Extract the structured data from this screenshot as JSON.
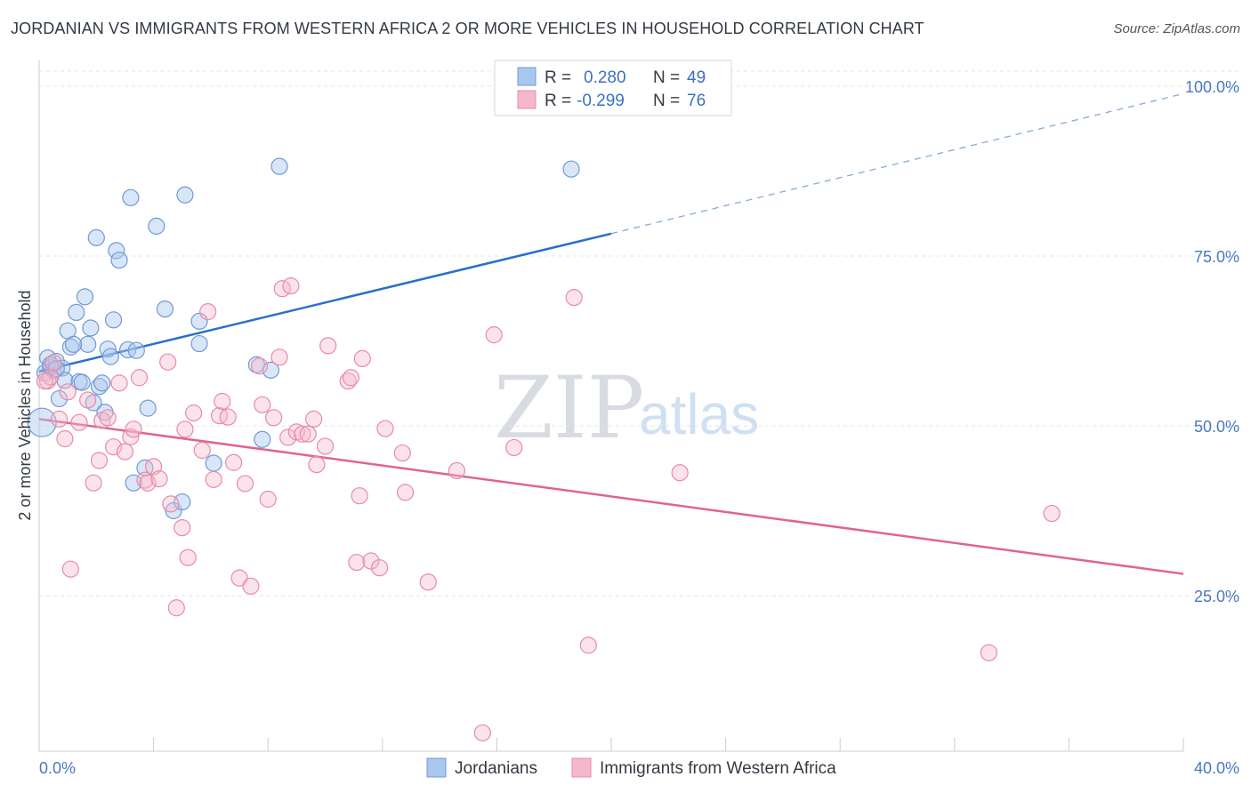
{
  "title": "JORDANIAN VS IMMIGRANTS FROM WESTERN AFRICA 2 OR MORE VEHICLES IN HOUSEHOLD CORRELATION CHART",
  "source": "Source: ZipAtlas.com",
  "watermark": {
    "zip": "ZIP",
    "atlas": "atlas"
  },
  "legend_box": {
    "rows": [
      {
        "r_label": "R =",
        "r_value": "0.280",
        "n_label": "N =",
        "n_value": "49"
      },
      {
        "r_label": "R =",
        "r_value": "-0.299",
        "n_label": "N =",
        "n_value": "76"
      }
    ]
  },
  "bottom_legend": [
    "Jordanians",
    "Immigrants from Western Africa"
  ],
  "colors": {
    "blue": "#2a6fcb",
    "blue_fill": "#aac8ee",
    "pink": "#e0648f",
    "pink_fill": "#f5b8ca",
    "tick_text": "#4a78c2"
  },
  "chart_data": {
    "type": "scatter",
    "title": "JORDANIAN VS IMMIGRANTS FROM WESTERN AFRICA 2 OR MORE VEHICLES IN HOUSEHOLD CORRELATION CHART",
    "xlabel": "",
    "ylabel": "2 or more Vehicles in Household",
    "xlim": [
      0,
      40
    ],
    "ylim": [
      0,
      100
    ],
    "x_tick_labels": [
      "0.0%",
      "40.0%"
    ],
    "y_tick_labels": [
      "100.0%",
      "75.0%",
      "50.0%",
      "25.0%"
    ],
    "y_tick_values": [
      100,
      75,
      50,
      25
    ],
    "grid": true,
    "series": [
      {
        "name": "Jordanians",
        "points": [
          [
            0.1,
            50.5
          ],
          [
            0.2,
            57.8
          ],
          [
            0.3,
            60
          ],
          [
            0.4,
            58.6
          ],
          [
            0.6,
            59.5
          ],
          [
            0.5,
            58.2
          ],
          [
            0.8,
            58.5
          ],
          [
            0.9,
            56.7
          ],
          [
            0.7,
            54
          ],
          [
            1.0,
            64
          ],
          [
            1.1,
            61.6
          ],
          [
            1.3,
            66.7
          ],
          [
            1.4,
            56.5
          ],
          [
            1.5,
            56.4
          ],
          [
            1.6,
            69
          ],
          [
            1.7,
            62
          ],
          [
            1.8,
            64.4
          ],
          [
            1.9,
            53.4
          ],
          [
            2.0,
            77.7
          ],
          [
            2.1,
            55.8
          ],
          [
            2.2,
            56.3
          ],
          [
            2.3,
            52
          ],
          [
            2.4,
            61.3
          ],
          [
            2.5,
            60.2
          ],
          [
            2.6,
            65.6
          ],
          [
            2.7,
            75.8
          ],
          [
            2.8,
            74.4
          ],
          [
            3.2,
            83.6
          ],
          [
            3.1,
            61.2
          ],
          [
            3.4,
            61.1
          ],
          [
            3.3,
            41.6
          ],
          [
            3.8,
            52.6
          ],
          [
            3.7,
            43.8
          ],
          [
            4.1,
            79.4
          ],
          [
            4.4,
            67.2
          ],
          [
            4.7,
            37.5
          ],
          [
            5.0,
            38.8
          ],
          [
            5.1,
            84
          ],
          [
            5.6,
            65.4
          ],
          [
            5.6,
            62.1
          ],
          [
            6.1,
            44.5
          ],
          [
            7.6,
            59
          ],
          [
            7.8,
            48
          ],
          [
            8.1,
            58.2
          ],
          [
            8.4,
            88.2
          ],
          [
            18.6,
            87.8
          ],
          [
            0.4,
            59
          ],
          [
            0.6,
            58.4
          ],
          [
            1.2,
            62
          ]
        ]
      },
      {
        "name": "Immigrants from Western Africa",
        "points": [
          [
            0.3,
            56.6
          ],
          [
            0.4,
            57.2
          ],
          [
            0.5,
            59.3
          ],
          [
            0.7,
            51
          ],
          [
            0.9,
            48.1
          ],
          [
            1.0,
            55
          ],
          [
            1.1,
            28.9
          ],
          [
            1.4,
            50.5
          ],
          [
            1.7,
            53.8
          ],
          [
            1.9,
            41.6
          ],
          [
            2.1,
            44.9
          ],
          [
            2.2,
            50.8
          ],
          [
            2.4,
            51.2
          ],
          [
            2.6,
            46.9
          ],
          [
            2.8,
            56.3
          ],
          [
            3.0,
            46.2
          ],
          [
            3.2,
            48.4
          ],
          [
            3.3,
            49.5
          ],
          [
            3.5,
            57.1
          ],
          [
            3.7,
            42
          ],
          [
            3.8,
            41.6
          ],
          [
            4.0,
            44
          ],
          [
            4.2,
            42.2
          ],
          [
            4.5,
            59.4
          ],
          [
            4.6,
            38.5
          ],
          [
            4.8,
            23.2
          ],
          [
            5.0,
            35
          ],
          [
            5.2,
            30.6
          ],
          [
            5.1,
            49.5
          ],
          [
            5.4,
            51.9
          ],
          [
            5.7,
            46.4
          ],
          [
            5.9,
            66.8
          ],
          [
            6.1,
            42.1
          ],
          [
            6.3,
            51.5
          ],
          [
            6.4,
            53.6
          ],
          [
            6.6,
            51.3
          ],
          [
            6.8,
            44.6
          ],
          [
            7.0,
            27.6
          ],
          [
            7.2,
            41.5
          ],
          [
            7.4,
            26.4
          ],
          [
            7.7,
            58.8
          ],
          [
            7.8,
            53.1
          ],
          [
            8.0,
            39.2
          ],
          [
            8.2,
            51.2
          ],
          [
            8.4,
            60.1
          ],
          [
            8.5,
            70.2
          ],
          [
            8.7,
            48.3
          ],
          [
            8.8,
            70.6
          ],
          [
            9.0,
            49.1
          ],
          [
            9.2,
            48.8
          ],
          [
            9.4,
            48.8
          ],
          [
            9.6,
            51
          ],
          [
            9.7,
            44.3
          ],
          [
            10.0,
            47
          ],
          [
            10.1,
            61.8
          ],
          [
            10.8,
            56.6
          ],
          [
            10.9,
            57.1
          ],
          [
            11.1,
            29.9
          ],
          [
            11.2,
            39.7
          ],
          [
            11.3,
            59.9
          ],
          [
            11.6,
            30.1
          ],
          [
            11.9,
            29.1
          ],
          [
            12.1,
            49.6
          ],
          [
            12.7,
            46
          ],
          [
            12.8,
            40.2
          ],
          [
            13.6,
            27
          ],
          [
            14.6,
            43.4
          ],
          [
            15.5,
            4.8
          ],
          [
            15.9,
            63.4
          ],
          [
            16.6,
            46.8
          ],
          [
            18.7,
            68.9
          ],
          [
            19.2,
            17.7
          ],
          [
            22.4,
            43.1
          ],
          [
            33.2,
            16.6
          ],
          [
            35.4,
            37.1
          ],
          [
            0.2,
            56.6
          ]
        ]
      }
    ],
    "trendlines": [
      {
        "series": "Jordanians",
        "x": [
          0,
          20
        ],
        "y": [
          58,
          78.3
        ],
        "dashed_extension_to": [
          40,
          98.9
        ]
      },
      {
        "series": "Immigrants from Western Africa",
        "x": [
          0,
          40
        ],
        "y": [
          51,
          28.2
        ]
      }
    ]
  }
}
